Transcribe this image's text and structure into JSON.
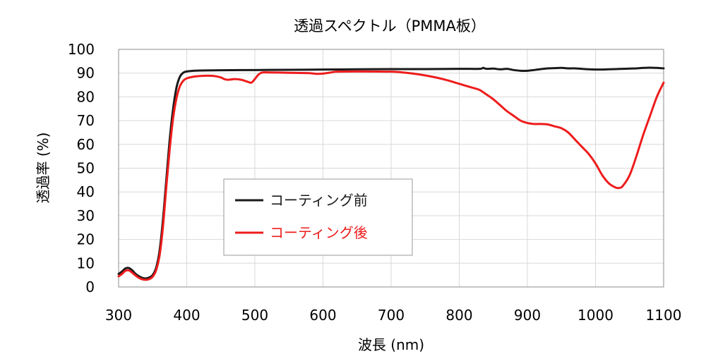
{
  "chart_data": {
    "type": "line",
    "title": "透過スペクトル（PMMA板）",
    "xlabel": "波長 (nm)",
    "ylabel": "透過率 (%)",
    "xlim": [
      300,
      1100
    ],
    "ylim": [
      0,
      100
    ],
    "x_ticks": [
      "300",
      "400",
      "500",
      "600",
      "700",
      "800",
      "900",
      "1000",
      "1100"
    ],
    "y_ticks": [
      "0",
      "10",
      "20",
      "30",
      "40",
      "50",
      "60",
      "70",
      "80",
      "90",
      "100"
    ],
    "grid": true,
    "legend_position": "center-left",
    "series": [
      {
        "name": "コーティング前",
        "color": "#1a1a1a",
        "points": [
          [
            300,
            5.5
          ],
          [
            305,
            6.5
          ],
          [
            310,
            7.8
          ],
          [
            315,
            8.0
          ],
          [
            320,
            7.0
          ],
          [
            325,
            5.5
          ],
          [
            330,
            4.5
          ],
          [
            335,
            3.8
          ],
          [
            340,
            3.6
          ],
          [
            345,
            4.0
          ],
          [
            350,
            5.0
          ],
          [
            355,
            8.0
          ],
          [
            360,
            15.0
          ],
          [
            365,
            28.0
          ],
          [
            370,
            45.0
          ],
          [
            375,
            62.0
          ],
          [
            380,
            75.0
          ],
          [
            385,
            84.0
          ],
          [
            390,
            88.5
          ],
          [
            395,
            90.2
          ],
          [
            400,
            90.7
          ],
          [
            410,
            91.0
          ],
          [
            420,
            91.1
          ],
          [
            450,
            91.2
          ],
          [
            500,
            91.3
          ],
          [
            550,
            91.4
          ],
          [
            600,
            91.5
          ],
          [
            650,
            91.6
          ],
          [
            700,
            91.7
          ],
          [
            750,
            91.7
          ],
          [
            800,
            91.8
          ],
          [
            830,
            91.8
          ],
          [
            835,
            92.2
          ],
          [
            840,
            91.8
          ],
          [
            850,
            91.9
          ],
          [
            860,
            91.6
          ],
          [
            870,
            91.8
          ],
          [
            880,
            91.3
          ],
          [
            890,
            91.0
          ],
          [
            900,
            91.0
          ],
          [
            910,
            91.3
          ],
          [
            920,
            91.7
          ],
          [
            930,
            92.0
          ],
          [
            940,
            92.1
          ],
          [
            950,
            92.2
          ],
          [
            960,
            92.0
          ],
          [
            970,
            92.0
          ],
          [
            980,
            91.8
          ],
          [
            990,
            91.6
          ],
          [
            1000,
            91.5
          ],
          [
            1010,
            91.5
          ],
          [
            1020,
            91.6
          ],
          [
            1030,
            91.7
          ],
          [
            1040,
            91.8
          ],
          [
            1050,
            91.9
          ],
          [
            1060,
            92.0
          ],
          [
            1070,
            92.2
          ],
          [
            1080,
            92.3
          ],
          [
            1090,
            92.2
          ],
          [
            1100,
            92.0
          ]
        ]
      },
      {
        "name": "コーティング後",
        "color": "#ee1c1c",
        "points": [
          [
            300,
            4.5
          ],
          [
            305,
            5.5
          ],
          [
            310,
            6.8
          ],
          [
            315,
            7.0
          ],
          [
            320,
            6.0
          ],
          [
            325,
            4.8
          ],
          [
            330,
            3.8
          ],
          [
            335,
            3.2
          ],
          [
            340,
            3.0
          ],
          [
            345,
            3.3
          ],
          [
            350,
            4.3
          ],
          [
            355,
            7.0
          ],
          [
            360,
            13.0
          ],
          [
            365,
            25.0
          ],
          [
            370,
            42.0
          ],
          [
            375,
            58.0
          ],
          [
            380,
            71.0
          ],
          [
            385,
            79.5
          ],
          [
            390,
            84.5
          ],
          [
            395,
            86.8
          ],
          [
            400,
            87.8
          ],
          [
            410,
            88.5
          ],
          [
            420,
            88.8
          ],
          [
            430,
            88.9
          ],
          [
            440,
            88.8
          ],
          [
            450,
            88.2
          ],
          [
            455,
            87.5
          ],
          [
            460,
            87.2
          ],
          [
            465,
            87.3
          ],
          [
            470,
            87.5
          ],
          [
            480,
            87.2
          ],
          [
            490,
            86.3
          ],
          [
            495,
            86.0
          ],
          [
            500,
            87.5
          ],
          [
            505,
            89.3
          ],
          [
            510,
            90.2
          ],
          [
            520,
            90.3
          ],
          [
            540,
            90.2
          ],
          [
            560,
            90.1
          ],
          [
            580,
            90.0
          ],
          [
            590,
            89.7
          ],
          [
            600,
            89.8
          ],
          [
            610,
            90.2
          ],
          [
            620,
            90.6
          ],
          [
            650,
            90.7
          ],
          [
            700,
            90.6
          ],
          [
            720,
            90.2
          ],
          [
            740,
            89.5
          ],
          [
            760,
            88.5
          ],
          [
            780,
            87.2
          ],
          [
            800,
            85.5
          ],
          [
            820,
            83.8
          ],
          [
            830,
            82.9
          ],
          [
            840,
            81.0
          ],
          [
            850,
            79.0
          ],
          [
            860,
            76.5
          ],
          [
            870,
            74.0
          ],
          [
            880,
            72.0
          ],
          [
            890,
            70.0
          ],
          [
            900,
            69.0
          ],
          [
            910,
            68.6
          ],
          [
            920,
            68.6
          ],
          [
            930,
            68.4
          ],
          [
            940,
            67.6
          ],
          [
            950,
            66.8
          ],
          [
            960,
            65.0
          ],
          [
            970,
            62.0
          ],
          [
            980,
            59.0
          ],
          [
            990,
            56.0
          ],
          [
            1000,
            52.0
          ],
          [
            1010,
            47.0
          ],
          [
            1020,
            43.5
          ],
          [
            1030,
            41.8
          ],
          [
            1035,
            41.7
          ],
          [
            1040,
            42.5
          ],
          [
            1050,
            47.0
          ],
          [
            1060,
            55.0
          ],
          [
            1070,
            64.0
          ],
          [
            1080,
            72.0
          ],
          [
            1090,
            80.0
          ],
          [
            1100,
            86.0
          ]
        ]
      }
    ]
  }
}
